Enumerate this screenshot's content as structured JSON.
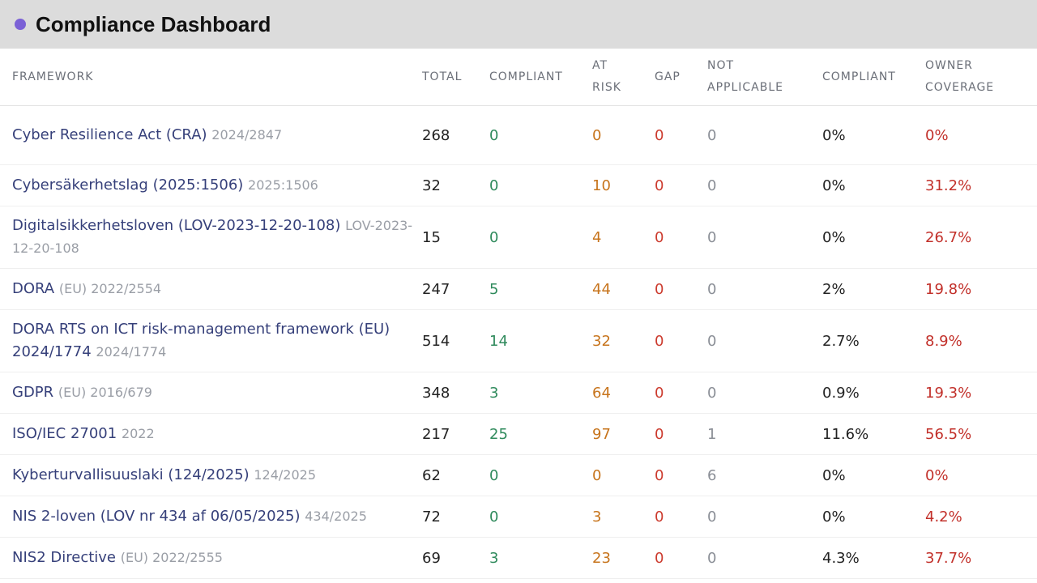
{
  "app": {
    "title": "Compliance Dashboard"
  },
  "columns": {
    "framework": "FRAMEWORK",
    "total": "TOTAL",
    "compliant": "COMPLIANT",
    "at_risk_1": "AT",
    "at_risk_2": "RISK",
    "gap": "GAP",
    "na_1": "NOT",
    "na_2": "APPLICABLE",
    "compliant_pct": "COMPLIANT",
    "owner_1": "OWNER",
    "owner_2": "COVERAGE"
  },
  "colors": {
    "accent_dot": "#7b61d6",
    "framework_link": "#36407a",
    "compliant": "#2f8a5c",
    "at_risk": "#c7741c",
    "gap": "#cc3b2e",
    "owner_coverage": "#c2302a"
  },
  "rows": [
    {
      "name": "Cyber Resilience Act (CRA)",
      "ref": "2024/2847",
      "total": "268",
      "compliant": "0",
      "at_risk": "0",
      "gap": "0",
      "na": "0",
      "compliant_pct": "0%",
      "owner": "0%"
    },
    {
      "name": "Cybersäkerhetslag (2025:1506)",
      "ref": "2025:1506",
      "total": "32",
      "compliant": "0",
      "at_risk": "10",
      "gap": "0",
      "na": "0",
      "compliant_pct": "0%",
      "owner": "31.2%"
    },
    {
      "name": "Digitalsikkerhetsloven (LOV-2023-12-20-108)",
      "ref": "LOV-2023-12-20-108",
      "total": "15",
      "compliant": "0",
      "at_risk": "4",
      "gap": "0",
      "na": "0",
      "compliant_pct": "0%",
      "owner": "26.7%"
    },
    {
      "name": "DORA",
      "ref": "(EU) 2022/2554",
      "total": "247",
      "compliant": "5",
      "at_risk": "44",
      "gap": "0",
      "na": "0",
      "compliant_pct": "2%",
      "owner": "19.8%"
    },
    {
      "name": "DORA RTS on ICT risk-management framework (EU) 2024/1774",
      "ref": "2024/1774",
      "total": "514",
      "compliant": "14",
      "at_risk": "32",
      "gap": "0",
      "na": "0",
      "compliant_pct": "2.7%",
      "owner": "8.9%"
    },
    {
      "name": "GDPR",
      "ref": "(EU) 2016/679",
      "total": "348",
      "compliant": "3",
      "at_risk": "64",
      "gap": "0",
      "na": "0",
      "compliant_pct": "0.9%",
      "owner": "19.3%"
    },
    {
      "name": "ISO/IEC 27001",
      "ref": "2022",
      "total": "217",
      "compliant": "25",
      "at_risk": "97",
      "gap": "0",
      "na": "1",
      "compliant_pct": "11.6%",
      "owner": "56.5%"
    },
    {
      "name": "Kyberturvallisuuslaki (124/2025)",
      "ref": "124/2025",
      "total": "62",
      "compliant": "0",
      "at_risk": "0",
      "gap": "0",
      "na": "6",
      "compliant_pct": "0%",
      "owner": "0%"
    },
    {
      "name": "NIS 2-loven (LOV nr 434 af 06/05/2025)",
      "ref": "434/2025",
      "total": "72",
      "compliant": "0",
      "at_risk": "3",
      "gap": "0",
      "na": "0",
      "compliant_pct": "0%",
      "owner": "4.2%"
    },
    {
      "name": "NIS2 Directive",
      "ref": "(EU) 2022/2555",
      "total": "69",
      "compliant": "3",
      "at_risk": "23",
      "gap": "0",
      "na": "0",
      "compliant_pct": "4.3%",
      "owner": "37.7%"
    }
  ]
}
